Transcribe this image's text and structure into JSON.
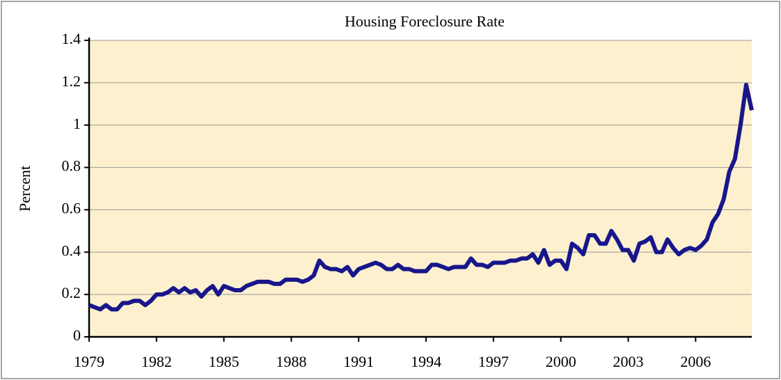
{
  "chart_data": {
    "type": "line",
    "title": "Housing Foreclosure Rate",
    "y_label": "Percent",
    "x": [
      1979,
      1979.25,
      1979.5,
      1979.75,
      1980,
      1980.25,
      1980.5,
      1980.75,
      1981,
      1981.25,
      1981.5,
      1981.75,
      1982,
      1982.25,
      1982.5,
      1982.75,
      1983,
      1983.25,
      1983.5,
      1983.75,
      1984,
      1984.25,
      1984.5,
      1984.75,
      1985,
      1985.25,
      1985.5,
      1985.75,
      1986,
      1986.25,
      1986.5,
      1986.75,
      1987,
      1987.25,
      1987.5,
      1987.75,
      1988,
      1988.25,
      1988.5,
      1988.75,
      1989,
      1989.25,
      1989.5,
      1989.75,
      1990,
      1990.25,
      1990.5,
      1990.75,
      1991,
      1991.25,
      1991.5,
      1991.75,
      1992,
      1992.25,
      1992.5,
      1992.75,
      1993,
      1993.25,
      1993.5,
      1993.75,
      1994,
      1994.25,
      1994.5,
      1994.75,
      1995,
      1995.25,
      1995.5,
      1995.75,
      1996,
      1996.25,
      1996.5,
      1996.75,
      1997,
      1997.25,
      1997.5,
      1997.75,
      1998,
      1998.25,
      1998.5,
      1998.75,
      1999,
      1999.25,
      1999.5,
      1999.75,
      2000,
      2000.25,
      2000.5,
      2000.75,
      2001,
      2001.25,
      2001.5,
      2001.75,
      2002,
      2002.25,
      2002.5,
      2002.75,
      2003,
      2003.25,
      2003.5,
      2003.75,
      2004,
      2004.25,
      2004.5,
      2004.75,
      2005,
      2005.25,
      2005.5,
      2005.75,
      2006,
      2006.25,
      2006.5,
      2006.75,
      2007,
      2007.25,
      2007.5,
      2007.75,
      2008,
      2008.25,
      2008.5
    ],
    "series": [
      {
        "name": "Foreclosure rate",
        "color": "#18168a",
        "values": [
          0.15,
          0.14,
          0.13,
          0.15,
          0.13,
          0.13,
          0.16,
          0.16,
          0.17,
          0.17,
          0.15,
          0.17,
          0.2,
          0.2,
          0.21,
          0.23,
          0.21,
          0.23,
          0.21,
          0.22,
          0.19,
          0.22,
          0.24,
          0.2,
          0.24,
          0.23,
          0.22,
          0.22,
          0.24,
          0.25,
          0.26,
          0.26,
          0.26,
          0.25,
          0.25,
          0.27,
          0.27,
          0.27,
          0.26,
          0.27,
          0.29,
          0.36,
          0.33,
          0.32,
          0.32,
          0.31,
          0.33,
          0.29,
          0.32,
          0.33,
          0.34,
          0.35,
          0.34,
          0.32,
          0.32,
          0.34,
          0.32,
          0.32,
          0.31,
          0.31,
          0.31,
          0.34,
          0.34,
          0.33,
          0.32,
          0.33,
          0.33,
          0.33,
          0.37,
          0.34,
          0.34,
          0.33,
          0.35,
          0.35,
          0.35,
          0.36,
          0.36,
          0.37,
          0.37,
          0.39,
          0.35,
          0.41,
          0.34,
          0.36,
          0.36,
          0.32,
          0.44,
          0.42,
          0.39,
          0.48,
          0.48,
          0.44,
          0.44,
          0.5,
          0.46,
          0.41,
          0.41,
          0.36,
          0.44,
          0.45,
          0.47,
          0.4,
          0.4,
          0.46,
          0.42,
          0.39,
          0.41,
          0.42,
          0.41,
          0.43,
          0.46,
          0.54,
          0.58,
          0.65,
          0.78,
          0.84,
          1.0,
          1.19,
          1.07
        ]
      }
    ],
    "xlim": [
      1979,
      2008.5
    ],
    "xticks": [
      1979,
      1982,
      1985,
      1988,
      1991,
      1994,
      1997,
      2000,
      2003,
      2006
    ],
    "ylim": [
      0,
      1.4
    ],
    "yticks": [
      0,
      0.2,
      0.4,
      0.6,
      0.8,
      1,
      1.2,
      1.4
    ],
    "grid": true,
    "background": "#fcf0cf"
  }
}
